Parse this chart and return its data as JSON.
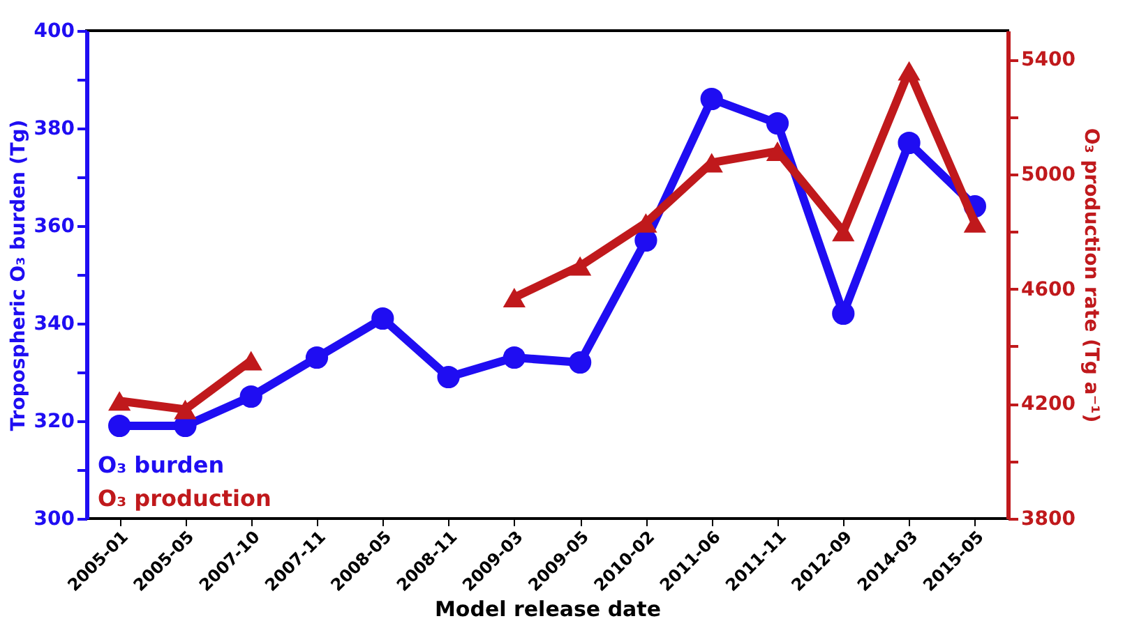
{
  "chart_data": {
    "type": "line",
    "xlabel": "Model release date",
    "ylabel": "Tropospheric O₃ burden (Tg)",
    "y2label": "O₃ production rate (Tg a⁻¹)",
    "categories": [
      "2005-01",
      "2005-05",
      "2007-10",
      "2007-11",
      "2008-05",
      "2008-11",
      "2009-03",
      "2009-05",
      "2010-02",
      "2011-06",
      "2011-11",
      "2012-09",
      "2014-03",
      "2015-05"
    ],
    "series": [
      {
        "name": "O₃ burden",
        "color": "#1f0df2",
        "marker": "circle",
        "values": [
          319,
          319,
          325,
          333,
          341,
          329,
          333,
          332,
          357,
          386,
          381,
          342,
          377,
          364
        ]
      },
      {
        "name": "O₃ production",
        "color": "#c0191c",
        "marker": "triangle",
        "axis": "y2",
        "values": [
          4210,
          4180,
          4350,
          null,
          null,
          null,
          4570,
          4680,
          4830,
          5040,
          5080,
          4800,
          5360,
          4830
        ]
      }
    ],
    "ylim": [
      300,
      400
    ],
    "yticks": [
      300,
      {
        "value": 310,
        "label": null
      },
      320,
      {
        "value": 330,
        "label": null
      },
      340,
      {
        "value": 350,
        "label": null
      },
      360,
      {
        "value": 370,
        "label": null
      },
      380,
      {
        "value": 390,
        "label": null
      },
      400
    ],
    "y2lim": [
      3800,
      5500
    ],
    "y2ticks": [
      3800,
      {
        "value": 4000,
        "label": null
      },
      4200,
      {
        "value": 4400,
        "label": null
      },
      4600,
      {
        "value": 4800,
        "label": null
      },
      5000,
      {
        "value": 5200,
        "label": null
      },
      5400
    ],
    "legend": "bottom left",
    "grid": false
  }
}
